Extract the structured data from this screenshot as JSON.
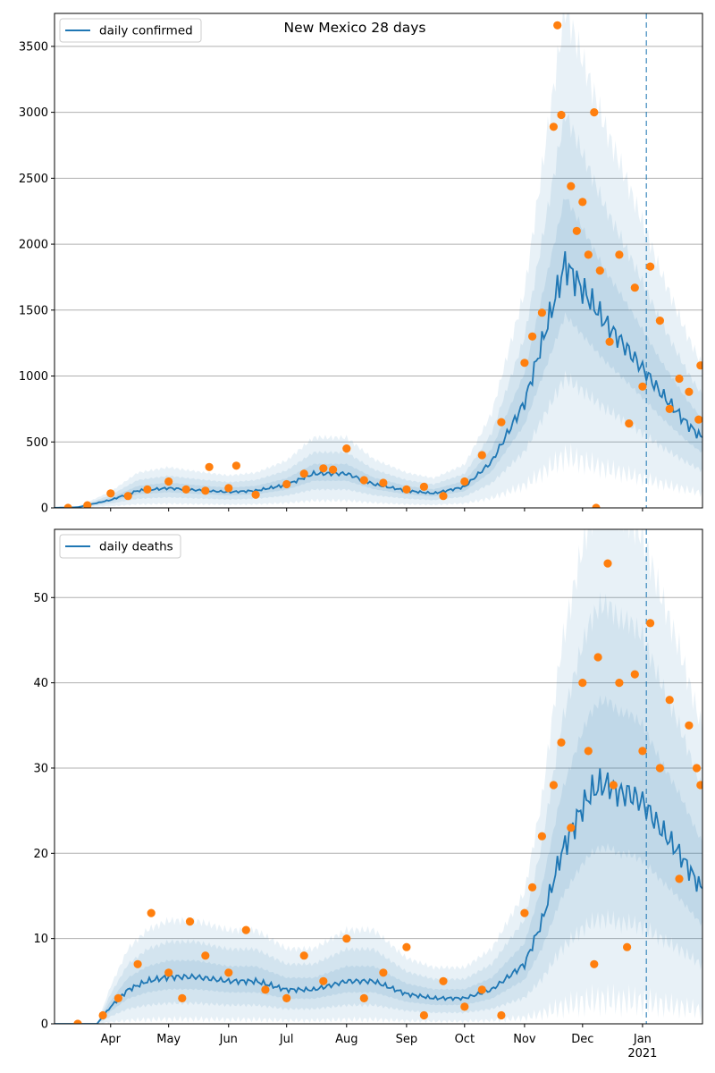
{
  "chart_data": [
    {
      "type": "line",
      "title": "New Mexico 28 days",
      "legend": {
        "placement": "top-left",
        "entries": [
          "daily confirmed"
        ]
      },
      "ylim": [
        0,
        3750
      ],
      "yticks": [
        0,
        500,
        1000,
        1500,
        2000,
        2500,
        3000,
        3500
      ],
      "grid": "y",
      "colors": {
        "line": "#1f77b4",
        "points": "#ff7f0e",
        "band": "#1f77b4"
      },
      "vline_date": "2021-01-03",
      "series": [
        {
          "name": "daily confirmed",
          "kind": "line",
          "x": [
            "2020-03-01",
            "2020-03-15",
            "2020-04-01",
            "2020-04-15",
            "2020-05-01",
            "2020-05-15",
            "2020-06-01",
            "2020-06-15",
            "2020-07-01",
            "2020-07-15",
            "2020-08-01",
            "2020-08-15",
            "2020-09-01",
            "2020-09-15",
            "2020-10-01",
            "2020-10-15",
            "2020-11-01",
            "2020-11-08",
            "2020-11-15",
            "2020-11-22",
            "2020-11-29",
            "2020-12-06",
            "2020-12-13",
            "2020-12-20",
            "2020-12-27",
            "2021-01-03",
            "2021-01-10",
            "2021-01-17",
            "2021-01-24",
            "2021-01-31"
          ],
          "y": [
            0,
            5,
            60,
            130,
            150,
            135,
            120,
            130,
            175,
            260,
            260,
            180,
            130,
            110,
            160,
            350,
            800,
            1150,
            1500,
            1850,
            1700,
            1550,
            1400,
            1280,
            1150,
            1020,
            880,
            760,
            640,
            540
          ]
        },
        {
          "kind": "scatter",
          "x": [
            "2020-03-10",
            "2020-03-20",
            "2020-04-01",
            "2020-04-10",
            "2020-04-20",
            "2020-05-01",
            "2020-05-10",
            "2020-05-20",
            "2020-05-22",
            "2020-06-01",
            "2020-06-05",
            "2020-06-15",
            "2020-07-01",
            "2020-07-10",
            "2020-07-20",
            "2020-07-25",
            "2020-08-01",
            "2020-08-10",
            "2020-08-20",
            "2020-09-01",
            "2020-09-10",
            "2020-09-20",
            "2020-10-01",
            "2020-10-10",
            "2020-10-20",
            "2020-11-01",
            "2020-11-05",
            "2020-11-10",
            "2020-11-16",
            "2020-11-18",
            "2020-11-20",
            "2020-11-25",
            "2020-11-28",
            "2020-12-01",
            "2020-12-04",
            "2020-12-07",
            "2020-12-08",
            "2020-12-10",
            "2020-12-15",
            "2020-12-20",
            "2020-12-25",
            "2020-12-28",
            "2021-01-01",
            "2021-01-05",
            "2021-01-10",
            "2021-01-15",
            "2021-01-20",
            "2021-01-25",
            "2021-01-30",
            "2021-01-31"
          ],
          "y": [
            0,
            20,
            110,
            90,
            140,
            200,
            140,
            130,
            310,
            150,
            320,
            100,
            180,
            260,
            300,
            290,
            450,
            210,
            190,
            140,
            160,
            90,
            200,
            400,
            650,
            1100,
            1300,
            1480,
            2890,
            3660,
            2980,
            2440,
            2100,
            2320,
            1920,
            3000,
            0,
            1800,
            1260,
            1920,
            640,
            1670,
            920,
            1830,
            1420,
            750,
            980,
            880,
            670,
            1080
          ]
        }
      ]
    },
    {
      "type": "line",
      "title": "",
      "legend": {
        "placement": "top-left",
        "entries": [
          "daily deaths"
        ]
      },
      "ylim": [
        0,
        58
      ],
      "yticks": [
        0,
        10,
        20,
        30,
        40,
        50
      ],
      "grid": "y",
      "colors": {
        "line": "#1f77b4",
        "points": "#ff7f0e",
        "band": "#1f77b4"
      },
      "vline_date": "2021-01-03",
      "xticks": [
        {
          "date": "2020-04-01",
          "label": "Apr"
        },
        {
          "date": "2020-05-01",
          "label": "May"
        },
        {
          "date": "2020-06-01",
          "label": "Jun"
        },
        {
          "date": "2020-07-01",
          "label": "Jul"
        },
        {
          "date": "2020-08-01",
          "label": "Aug"
        },
        {
          "date": "2020-09-01",
          "label": "Sep"
        },
        {
          "date": "2020-10-01",
          "label": "Oct"
        },
        {
          "date": "2020-11-01",
          "label": "Nov"
        },
        {
          "date": "2020-12-01",
          "label": "Dec"
        },
        {
          "date": "2021-01-01",
          "label": "Jan",
          "sublabel": "2021"
        }
      ],
      "xlim": [
        "2020-03-03",
        "2021-02-01"
      ],
      "series": [
        {
          "name": "daily deaths",
          "kind": "line",
          "x": [
            "2020-03-01",
            "2020-03-25",
            "2020-04-01",
            "2020-04-10",
            "2020-04-20",
            "2020-05-01",
            "2020-05-15",
            "2020-06-01",
            "2020-06-15",
            "2020-07-01",
            "2020-07-15",
            "2020-08-01",
            "2020-08-15",
            "2020-09-01",
            "2020-09-15",
            "2020-10-01",
            "2020-10-15",
            "2020-11-01",
            "2020-11-10",
            "2020-11-20",
            "2020-11-30",
            "2020-12-05",
            "2020-12-10",
            "2020-12-15",
            "2020-12-20",
            "2020-12-25",
            "2021-01-01",
            "2021-01-10",
            "2021-01-20",
            "2021-01-31"
          ],
          "y": [
            0,
            0,
            2,
            4,
            5,
            5.5,
            5.5,
            5,
            5,
            4,
            4,
            5,
            5,
            3.5,
            3,
            3,
            4,
            7,
            12,
            20,
            25,
            27,
            28,
            28,
            27,
            27,
            26,
            23,
            20,
            16
          ]
        },
        {
          "kind": "scatter",
          "x": [
            "2020-03-15",
            "2020-03-28",
            "2020-04-05",
            "2020-04-15",
            "2020-04-22",
            "2020-05-01",
            "2020-05-08",
            "2020-05-12",
            "2020-05-20",
            "2020-06-01",
            "2020-06-10",
            "2020-06-20",
            "2020-07-01",
            "2020-07-10",
            "2020-07-20",
            "2020-08-01",
            "2020-08-10",
            "2020-08-20",
            "2020-09-01",
            "2020-09-10",
            "2020-09-20",
            "2020-10-01",
            "2020-10-10",
            "2020-10-20",
            "2020-11-01",
            "2020-11-05",
            "2020-11-10",
            "2020-11-16",
            "2020-11-20",
            "2020-11-25",
            "2020-12-01",
            "2020-12-04",
            "2020-12-07",
            "2020-12-09",
            "2020-12-14",
            "2020-12-17",
            "2020-12-20",
            "2020-12-24",
            "2020-12-28",
            "2021-01-01",
            "2021-01-05",
            "2021-01-10",
            "2021-01-15",
            "2021-01-20",
            "2021-01-25",
            "2021-01-29",
            "2021-01-31"
          ],
          "y": [
            0,
            1,
            3,
            7,
            13,
            6,
            3,
            12,
            8,
            6,
            11,
            4,
            3,
            8,
            5,
            10,
            3,
            6,
            9,
            1,
            5,
            2,
            4,
            1,
            13,
            16,
            22,
            28,
            33,
            23,
            40,
            32,
            7,
            43,
            54,
            28,
            40,
            9,
            41,
            32,
            47,
            30,
            38,
            17,
            35,
            30,
            28
          ]
        }
      ]
    }
  ]
}
